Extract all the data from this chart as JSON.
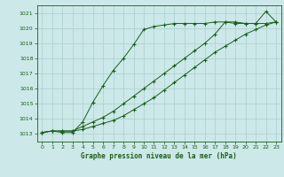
{
  "title": "Graphe pression niveau de la mer (hPa)",
  "bg_color": "#cce8e8",
  "grid_color": "#aacfcf",
  "line_color": "#1a5e1a",
  "xlim": [
    -0.5,
    23.5
  ],
  "ylim": [
    1012.5,
    1021.5
  ],
  "yticks": [
    1013,
    1014,
    1015,
    1016,
    1017,
    1018,
    1019,
    1020,
    1021
  ],
  "xticks": [
    0,
    1,
    2,
    3,
    4,
    5,
    6,
    7,
    8,
    9,
    10,
    11,
    12,
    13,
    14,
    15,
    16,
    17,
    18,
    19,
    20,
    21,
    22,
    23
  ],
  "series1": {
    "x": [
      0,
      1,
      2,
      3,
      4,
      5,
      6,
      7,
      8,
      9,
      10,
      11,
      12,
      13,
      14,
      15,
      16,
      17,
      18,
      19,
      20,
      21,
      22,
      23
    ],
    "y": [
      1013.1,
      1013.2,
      1013.1,
      1013.1,
      1013.8,
      1015.1,
      1016.2,
      1017.2,
      1018.0,
      1018.9,
      1019.9,
      1020.1,
      1020.2,
      1020.3,
      1020.3,
      1020.3,
      1020.3,
      1020.4,
      1020.4,
      1020.3,
      1020.3,
      1020.3,
      1021.1,
      1020.4
    ]
  },
  "series2": {
    "x": [
      0,
      1,
      2,
      3,
      4,
      5,
      6,
      7,
      8,
      9,
      10,
      11,
      12,
      13,
      14,
      15,
      16,
      17,
      18,
      19,
      20,
      21,
      22,
      23
    ],
    "y": [
      1013.1,
      1013.2,
      1013.2,
      1013.2,
      1013.5,
      1013.8,
      1014.1,
      1014.5,
      1015.0,
      1015.5,
      1016.0,
      1016.5,
      1017.0,
      1017.5,
      1018.0,
      1018.5,
      1019.0,
      1019.6,
      1020.4,
      1020.4,
      1020.3,
      1020.3,
      1020.3,
      1020.4
    ]
  },
  "series3": {
    "x": [
      0,
      1,
      2,
      3,
      4,
      5,
      6,
      7,
      8,
      9,
      10,
      11,
      12,
      13,
      14,
      15,
      16,
      17,
      18,
      19,
      20,
      21,
      22,
      23
    ],
    "y": [
      1013.1,
      1013.2,
      1013.2,
      1013.2,
      1013.3,
      1013.5,
      1013.7,
      1013.9,
      1014.2,
      1014.6,
      1015.0,
      1015.4,
      1015.9,
      1016.4,
      1016.9,
      1017.4,
      1017.9,
      1018.4,
      1018.8,
      1019.2,
      1019.6,
      1019.9,
      1020.2,
      1020.4
    ]
  }
}
